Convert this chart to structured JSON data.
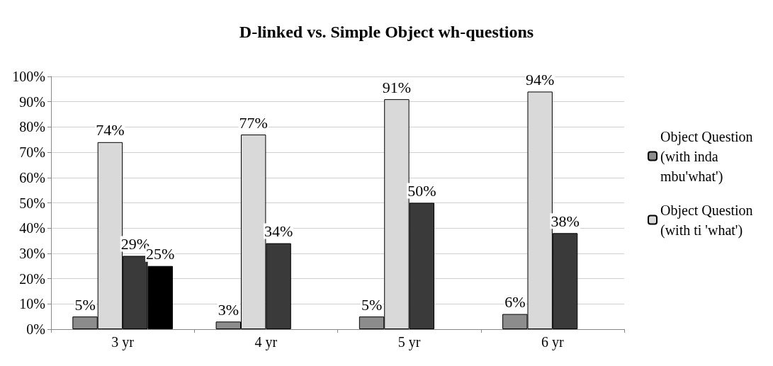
{
  "chart_data": {
    "type": "bar",
    "title": "D-linked vs. Simple Object wh-questions",
    "categories": [
      "3 yr",
      "4 yr",
      "5 yr",
      "6 yr"
    ],
    "series": [
      {
        "name": "Object Question (with inda mbu'what')",
        "color": "#8c8c8c",
        "values": [
          5,
          3,
          5,
          6
        ],
        "value_labels": [
          "5%",
          "3%",
          "5%",
          "6%"
        ]
      },
      {
        "name": "Object Question (with ti 'what')",
        "color": "#d9d9d9",
        "values": [
          74,
          77,
          91,
          94
        ],
        "value_labels": [
          "74%",
          "77%",
          "91%",
          "94%"
        ]
      },
      {
        "color": "#3a3a3a",
        "values": [
          29,
          34,
          50,
          38
        ],
        "value_labels": [
          "29%",
          "34%",
          "50%",
          "38%"
        ]
      },
      {
        "color": "#000000",
        "values": [
          25,
          null,
          null,
          null
        ],
        "value_labels": [
          "25%",
          null,
          null,
          null
        ]
      }
    ],
    "ylim": [
      0,
      100
    ],
    "yticks": [
      {
        "value": 0,
        "label": "0%"
      },
      {
        "value": 10,
        "label": "10%"
      },
      {
        "value": 20,
        "label": "20%"
      },
      {
        "value": 30,
        "label": "30%"
      },
      {
        "value": 40,
        "label": "40%"
      },
      {
        "value": 50,
        "label": "50%"
      },
      {
        "value": 60,
        "label": "60%"
      },
      {
        "value": 70,
        "label": "70%"
      },
      {
        "value": 80,
        "label": "80%"
      },
      {
        "value": 90,
        "label": "90%"
      },
      {
        "value": 100,
        "label": "100%"
      }
    ],
    "grid": "y",
    "legend": "right"
  }
}
